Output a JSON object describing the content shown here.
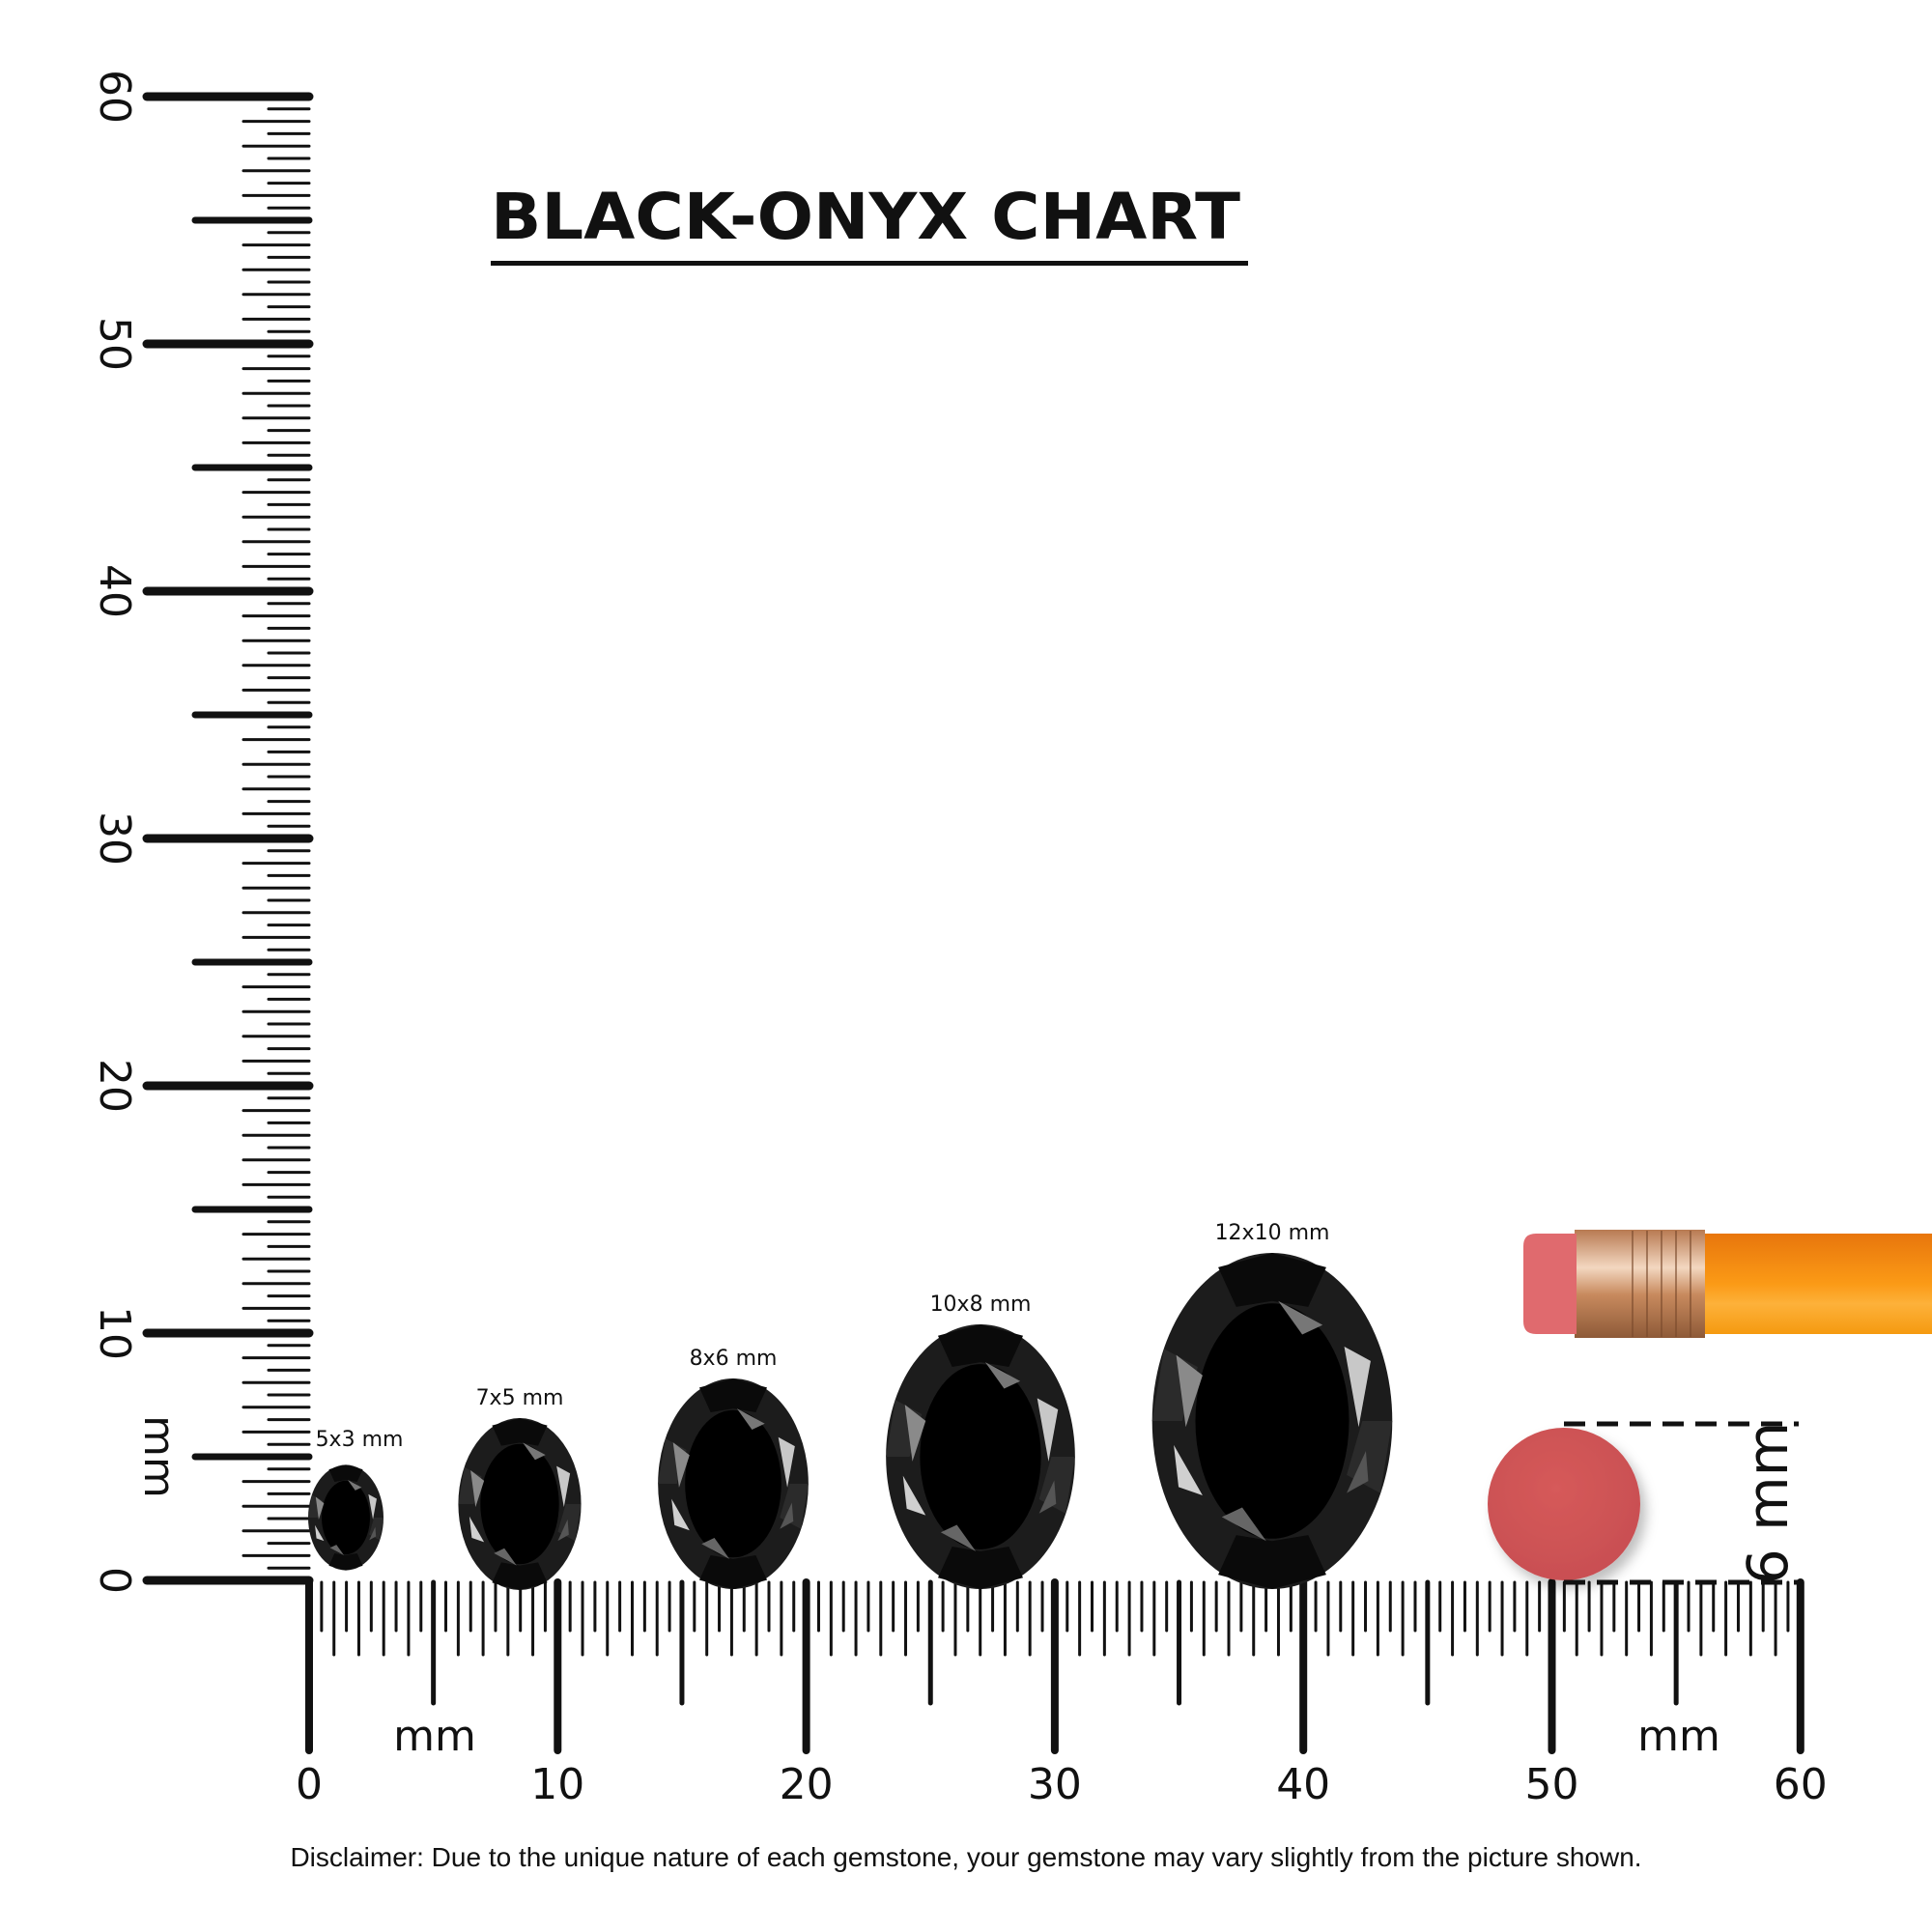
{
  "title": "BLACK-ONYX CHART",
  "unit_label": "mm",
  "vertical_ruler": {
    "labels": [
      "0",
      "10",
      "20",
      "30",
      "40",
      "50",
      "60"
    ],
    "unit": "mm",
    "range_mm": [
      0,
      60
    ]
  },
  "horizontal_ruler": {
    "labels": [
      "0",
      "10",
      "20",
      "30",
      "40",
      "50",
      "60"
    ],
    "unit": "mm",
    "range_mm": [
      0,
      60
    ]
  },
  "gemstones": [
    {
      "label": "5x3 mm",
      "length_mm": 5,
      "width_mm": 3
    },
    {
      "label": "7x5 mm",
      "length_mm": 7,
      "width_mm": 5
    },
    {
      "label": "8x6 mm",
      "length_mm": 8,
      "width_mm": 6
    },
    {
      "label": "10x8 mm",
      "length_mm": 10,
      "width_mm": 8
    },
    {
      "label": "12x10 mm",
      "length_mm": 12,
      "width_mm": 10
    }
  ],
  "eraser_reference": {
    "label": "6 mm",
    "color": "#d45a5a"
  },
  "pencil_colors": {
    "eraser": "#e06a6e",
    "ferrule": "#d9a37a",
    "body": "#f7940f"
  },
  "disclaimer": "Disclaimer: Due to the unique nature of each gemstone, your gemstone may vary slightly from the picture shown."
}
